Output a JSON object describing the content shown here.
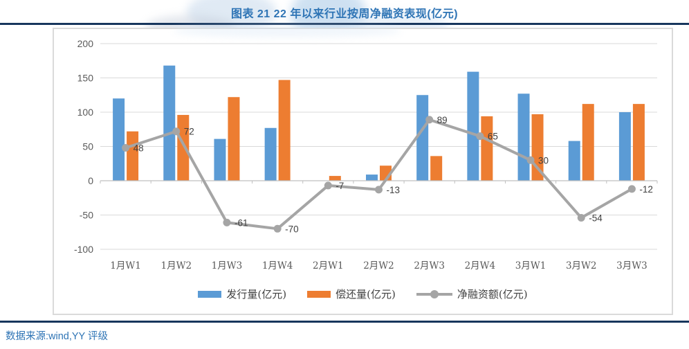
{
  "header": {
    "title": "图表 21  22 年以来行业按周净融资表现(亿元)"
  },
  "footer": {
    "source": "数据来源:wind,YY 评级"
  },
  "colors": {
    "title_blue": "#2E74B5",
    "rule_navy": "#17365D",
    "source_blue": "#2E74B5",
    "bar_issue_blue": "#5B9BD5",
    "bar_repay_orange": "#ED7D31",
    "line_net_gray": "#A5A5A5",
    "gridline": "#D9D9D9",
    "axis_line": "#BFBFBF",
    "tick_label": "#595959",
    "data_label": "#404040",
    "plot_border": "#DADADA"
  },
  "chart_data": {
    "type": "bar",
    "title": "图表 21  22 年以来行业按周净融资表现(亿元)",
    "xlabel": "",
    "ylabel": "",
    "ylim": [
      -100,
      200
    ],
    "yticks": [
      200,
      150,
      100,
      50,
      0,
      -50,
      -100
    ],
    "grid": true,
    "legend_position": "bottom",
    "categories": [
      "1月W1",
      "1月W2",
      "1月W3",
      "1月W4",
      "2月W1",
      "2月W2",
      "2月W3",
      "2月W4",
      "3月W1",
      "3月W2",
      "3月W3"
    ],
    "series": [
      {
        "name": "发行量(亿元)",
        "type": "bar",
        "color": "#5B9BD5",
        "values": [
          120,
          168,
          61,
          77,
          0,
          9,
          125,
          159,
          127,
          58,
          100
        ]
      },
      {
        "name": "偿还量(亿元)",
        "type": "bar",
        "color": "#ED7D31",
        "values": [
          72,
          96,
          122,
          147,
          7,
          22,
          36,
          94,
          97,
          112,
          112
        ]
      },
      {
        "name": "净融资额(亿元)",
        "type": "line",
        "color": "#A5A5A5",
        "values": [
          48,
          72,
          -61,
          -70,
          -7,
          -13,
          89,
          65,
          30,
          -54,
          -12
        ],
        "data_labels": [
          48,
          72,
          -61,
          -70,
          -7,
          -13,
          89,
          65,
          30,
          -54,
          -12
        ]
      }
    ]
  }
}
